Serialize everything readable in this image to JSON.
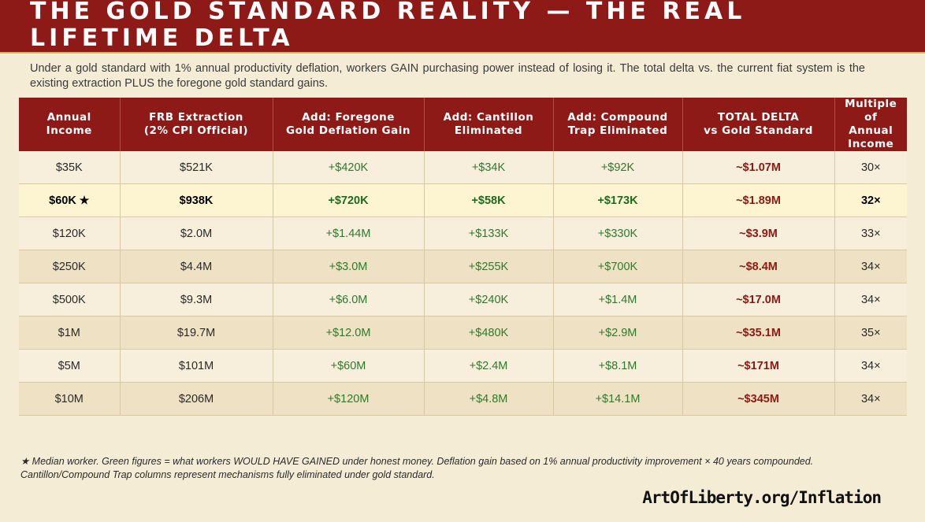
{
  "header": {
    "title_line1": "THE GOLD STANDARD REALITY — THE REAL",
    "title_line2": "LIFETIME DELTA"
  },
  "subtitle": "Under a gold standard with 1% annual productivity deflation, workers GAIN purchasing power instead of losing it. The total delta vs. the current fiat system is the existing extraction PLUS the foregone gold standard gains.",
  "table": {
    "columns": [
      "Annual\nIncome",
      "FRB Extraction\n(2% CPI Official)",
      "Add: Foregone\nGold Deflation Gain",
      "Add: Cantillon\nEliminated",
      "Add: Compound\nTrap Eliminated",
      "TOTAL DELTA\nvs Gold Standard",
      "Multiple of\nAnnual\nIncome"
    ],
    "rows": [
      {
        "income": "$35K",
        "frb": "$521K",
        "deflation": "+$420K",
        "cantillon": "+$34K",
        "compound": "+$92K",
        "total": "~$1.07M",
        "multiple": "30×"
      },
      {
        "income": "$60K",
        "star": "★",
        "frb": "$938K",
        "deflation": "+$720K",
        "cantillon": "+$58K",
        "compound": "+$173K",
        "total": "~$1.89M",
        "multiple": "32×"
      },
      {
        "income": "$120K",
        "frb": "$2.0M",
        "deflation": "+$1.44M",
        "cantillon": "+$133K",
        "compound": "+$330K",
        "total": "~$3.9M",
        "multiple": "33×"
      },
      {
        "income": "$250K",
        "frb": "$4.4M",
        "deflation": "+$3.0M",
        "cantillon": "+$255K",
        "compound": "+$700K",
        "total": "~$8.4M",
        "multiple": "34×"
      },
      {
        "income": "$500K",
        "frb": "$9.3M",
        "deflation": "+$6.0M",
        "cantillon": "+$240K",
        "compound": "+$1.4M",
        "total": "~$17.0M",
        "multiple": "34×"
      },
      {
        "income": "$1M",
        "frb": "$19.7M",
        "deflation": "+$12.0M",
        "cantillon": "+$480K",
        "compound": "+$2.9M",
        "total": "~$35.1M",
        "multiple": "35×"
      },
      {
        "income": "$5M",
        "frb": "$101M",
        "deflation": "+$60M",
        "cantillon": "+$2.4M",
        "compound": "+$8.1M",
        "total": "~$171M",
        "multiple": "34×"
      },
      {
        "income": "$10M",
        "frb": "$206M",
        "deflation": "+$120M",
        "cantillon": "+$4.8M",
        "compound": "+$14.1M",
        "total": "~$345M",
        "multiple": "34×"
      }
    ]
  },
  "footnote": {
    "line1": "★ Median worker. Green figures = what workers WOULD HAVE GAINED under honest money. Deflation gain based on 1% annual productivity improvement × 40 years compounded.",
    "line2": "Cantillon/Compound Trap columns represent mechanisms fully eliminated under gold standard."
  },
  "brand": "ArtOfLiberty.org/Inflation",
  "colors": {
    "header_bg": "#8e1a17",
    "page_bg": "#f5ecd6",
    "gain_green": "#2d7a2d",
    "total_red": "#8a1a14"
  }
}
